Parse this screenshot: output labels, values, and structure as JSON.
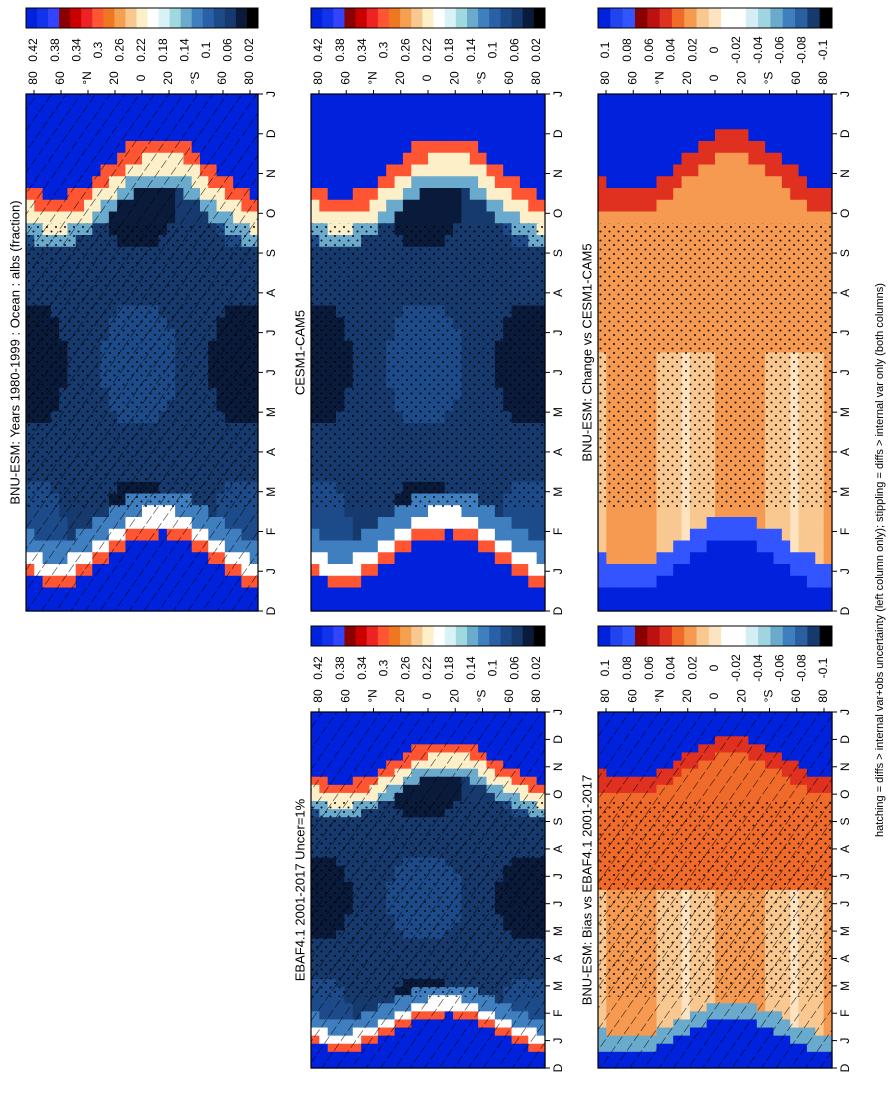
{
  "figure": {
    "footnote": "hatching = diffs > internal var+obs uncertainty (left column only); stippling = diffs > internal var only (both columns)"
  },
  "palettes": {
    "abs": [
      "#0022dd",
      "#1133ee",
      "#3344ff",
      "#8b0000",
      "#cc0000",
      "#ee2222",
      "#ff5533",
      "#ee7722",
      "#f5a050",
      "#f8c890",
      "#fdf0c8",
      "#ffffff",
      "#d8f2f6",
      "#a0d8e0",
      "#6aaacc",
      "#3f7fc0",
      "#2a60a8",
      "#1d4b8a",
      "#163a6e",
      "#0a1a3a",
      "#000000"
    ],
    "diff": [
      "#0022dd",
      "#2244ee",
      "#3355ff",
      "#8b0000",
      "#bb1111",
      "#e03020",
      "#f06a2a",
      "#f59a50",
      "#f8c890",
      "#fde3c0",
      "#ffffff",
      "#ffffff",
      "#d4eef4",
      "#a0d4e0",
      "#6aaacc",
      "#3f7fc0",
      "#2a5fa0",
      "#163a6e",
      "#000000"
    ]
  },
  "colorbars": {
    "abs_ticks": [
      "0.42",
      "0.38",
      "0.34",
      "0.3",
      "0.26",
      "0.22",
      "0.18",
      "0.14",
      "0.1",
      "0.06",
      "0.02"
    ],
    "diff_ticks": [
      "0.1",
      "0.08",
      "0.06",
      "0.04",
      "0.02",
      "0",
      "-0.02",
      "-0.04",
      "-0.06",
      "-0.08",
      "-0.1"
    ]
  },
  "axes": {
    "month_labels": [
      "D",
      "J",
      "F",
      "M",
      "A",
      "M",
      "J",
      "J",
      "A",
      "S",
      "O",
      "N",
      "D",
      "J"
    ],
    "lat_labels": [
      "80",
      "60",
      "°N",
      "20",
      "0",
      "20",
      "°S",
      "60",
      "80"
    ]
  },
  "chart_data": [
    {
      "type": "heatmap",
      "id": "model-mean",
      "title": "BNU-ESM: Years 1980-1999 : Ocean : albs (fraction)",
      "x": [
        "D",
        "J",
        "F",
        "M",
        "A",
        "M",
        "J",
        "J",
        "A",
        "S",
        "O",
        "N",
        "D",
        "J"
      ],
      "y": [
        "80",
        "60",
        "°N",
        "20",
        "0",
        "20",
        "°S",
        "60",
        "80"
      ],
      "zrange": [
        0.02,
        0.42
      ],
      "field": "albedo",
      "overlay": "hatching+stippling"
    },
    {
      "type": "heatmap",
      "id": "ref-model",
      "title": "CESM1-CAM5",
      "x": [
        "D",
        "J",
        "F",
        "M",
        "A",
        "M",
        "J",
        "J",
        "A",
        "S",
        "O",
        "N",
        "D",
        "J"
      ],
      "y": [
        "80",
        "60",
        "°N",
        "20",
        "0",
        "20",
        "°S",
        "60",
        "80"
      ],
      "zrange": [
        0.02,
        0.42
      ],
      "field": "albedo",
      "overlay": "stippling"
    },
    {
      "type": "heatmap",
      "id": "obs",
      "title": "EBAF4.1 2001-2017 Uncer=1%",
      "x": [
        "D",
        "J",
        "F",
        "M",
        "A",
        "M",
        "J",
        "J",
        "A",
        "S",
        "O",
        "N",
        "D",
        "J"
      ],
      "y": [
        "80",
        "60",
        "°N",
        "20",
        "0",
        "20",
        "°S",
        "60",
        "80"
      ],
      "zrange": [
        0.02,
        0.42
      ],
      "field": "albedo",
      "overlay": "hatching+stippling"
    },
    {
      "type": "heatmap",
      "id": "change",
      "title": "BNU-ESM: Change vs CESM1-CAM5",
      "x": [
        "D",
        "J",
        "F",
        "M",
        "A",
        "M",
        "J",
        "J",
        "A",
        "S",
        "O",
        "N",
        "D",
        "J"
      ],
      "y": [
        "80",
        "60",
        "°N",
        "20",
        "0",
        "20",
        "°S",
        "60",
        "80"
      ],
      "zrange": [
        -0.1,
        0.1
      ],
      "field": "change",
      "overlay": "stippling"
    },
    {
      "type": "heatmap",
      "id": "bias",
      "title": "BNU-ESM: Bias vs EBAF4.1 2001-2017",
      "x": [
        "D",
        "J",
        "F",
        "M",
        "A",
        "M",
        "J",
        "J",
        "A",
        "S",
        "O",
        "N",
        "D",
        "J"
      ],
      "y": [
        "80",
        "60",
        "°N",
        "20",
        "0",
        "20",
        "°S",
        "60",
        "80"
      ],
      "zrange": [
        -0.1,
        0.1
      ],
      "field": "bias",
      "overlay": "hatching+stippling"
    }
  ]
}
